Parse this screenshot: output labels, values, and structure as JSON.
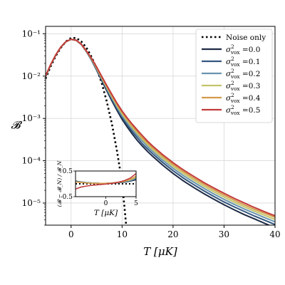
{
  "chart_data": [
    {
      "type": "line",
      "xlabel": "T [μK]",
      "ylabel": "𝓑",
      "xlim": [
        -5,
        40
      ],
      "ylim": [
        3e-06,
        0.15
      ],
      "yscale": "log",
      "grid": true,
      "legend_position": "top-right",
      "x_ticks": [
        0,
        10,
        20,
        30,
        40
      ],
      "y_ticks": [
        {
          "value": 1e-05,
          "label": "10⁻⁵"
        },
        {
          "value": 0.0001,
          "label": "10⁻⁴"
        },
        {
          "value": 0.001,
          "label": "10⁻³"
        },
        {
          "value": 0.01,
          "label": "10⁻²"
        },
        {
          "value": 0.1,
          "label": "10⁻¹"
        }
      ],
      "x": [
        -5,
        -4,
        -3,
        -2,
        -1,
        0,
        1,
        2,
        3,
        4,
        5,
        6,
        7,
        8,
        9,
        10,
        11,
        12,
        13,
        14,
        15,
        16,
        18,
        20,
        22,
        24,
        26,
        28,
        30,
        32,
        34,
        36,
        38,
        40
      ],
      "series": [
        {
          "name": "Noise only",
          "color": "#000000",
          "dashed": true,
          "x": [
            -5,
            -4,
            -3,
            -2,
            -1,
            0,
            1,
            2,
            3,
            4,
            5,
            6,
            7,
            8,
            9,
            10,
            10.8
          ],
          "values": [
            0.0087,
            0.0171,
            0.03,
            0.047,
            0.066,
            0.0798,
            0.0798,
            0.066,
            0.047,
            0.0288,
            0.0152,
            0.0069,
            0.0025,
            0.00075,
            0.00017,
            3.1e-05,
            3e-06
          ]
        },
        {
          "name": "σ²_vox = 0.0",
          "color": "#1e2b45",
          "values": [
            0.0097,
            0.0184,
            0.0315,
            0.0485,
            0.065,
            0.074,
            0.07,
            0.056,
            0.038,
            0.024,
            0.014,
            0.0079,
            0.0045,
            0.0026,
            0.00155,
            0.00095,
            0.00063,
            0.00043,
            0.0003,
            0.00022,
            0.000165,
            0.000127,
            7.8e-05,
            5e-05,
            3.35e-05,
            2.35e-05,
            1.68e-05,
            1.23e-05,
            9.1e-06,
            6.9e-06,
            5.3e-06,
            4.2e-06,
            3.3e-06,
            2.6e-06
          ]
        },
        {
          "name": "σ²_vox = 0.1",
          "color": "#34577f",
          "values": [
            0.0098,
            0.0185,
            0.0316,
            0.0486,
            0.0651,
            0.074,
            0.0701,
            0.0562,
            0.0383,
            0.0245,
            0.0145,
            0.0083,
            0.0048,
            0.00282,
            0.0017,
            0.00106,
            0.00071,
            0.00049,
            0.00035,
            0.00025,
            0.00019,
            0.000146,
            9e-05,
            5.8e-05,
            3.9e-05,
            2.74e-05,
            1.96e-05,
            1.43e-05,
            1.06e-05,
            8.1e-06,
            6.3e-06,
            4.9e-06,
            3.9e-06,
            3.1e-06
          ]
        },
        {
          "name": "σ²_vox = 0.2",
          "color": "#6a95b0",
          "values": [
            0.0099,
            0.0186,
            0.0317,
            0.0487,
            0.0652,
            0.0741,
            0.0702,
            0.0564,
            0.0386,
            0.025,
            0.015,
            0.0087,
            0.0051,
            0.00304,
            0.00185,
            0.00117,
            0.00079,
            0.00055,
            0.0004,
            0.00029,
            0.000215,
            0.000165,
            0.000102,
            6.6e-05,
            4.45e-05,
            3.13e-05,
            2.24e-05,
            1.64e-05,
            1.22e-05,
            9.3e-06,
            7.2e-06,
            5.7e-06,
            4.5e-06,
            3.6e-06
          ]
        },
        {
          "name": "σ²_vox = 0.3",
          "color": "#c3c46a",
          "values": [
            0.01,
            0.0187,
            0.0318,
            0.0488,
            0.0653,
            0.0741,
            0.0703,
            0.0566,
            0.0389,
            0.0255,
            0.0155,
            0.0091,
            0.0054,
            0.00326,
            0.002,
            0.00128,
            0.00087,
            0.00061,
            0.00044,
            0.00032,
            0.00024,
            0.000184,
            0.000114,
            7.4e-05,
            5e-05,
            3.52e-05,
            2.52e-05,
            1.85e-05,
            1.38e-05,
            1.05e-05,
            8.1e-06,
            6.4e-06,
            5.1e-06,
            4.1e-06
          ]
        },
        {
          "name": "σ²_vox = 0.4",
          "color": "#d49a4c",
          "values": [
            0.0101,
            0.0188,
            0.0319,
            0.0489,
            0.0654,
            0.0742,
            0.0704,
            0.0568,
            0.0392,
            0.026,
            0.016,
            0.0095,
            0.0057,
            0.00348,
            0.00215,
            0.00139,
            0.00095,
            0.00067,
            0.00048,
            0.00035,
            0.000265,
            0.000203,
            0.000126,
            8.2e-05,
            5.55e-05,
            3.91e-05,
            2.8e-05,
            2.06e-05,
            1.54e-05,
            1.17e-05,
            9e-06,
            7.1e-06,
            5.7e-06,
            4.6e-06
          ]
        },
        {
          "name": "σ²_vox = 0.5",
          "color": "#c23b3b",
          "values": [
            0.0102,
            0.0189,
            0.032,
            0.049,
            0.0655,
            0.0742,
            0.0705,
            0.057,
            0.0395,
            0.0265,
            0.0165,
            0.0099,
            0.006,
            0.0037,
            0.0023,
            0.0015,
            0.00103,
            0.00073,
            0.00053,
            0.00039,
            0.00029,
            0.000222,
            0.000138,
            9e-05,
            6.1e-05,
            4.3e-05,
            3.08e-05,
            2.27e-05,
            1.7e-05,
            1.29e-05,
            1e-05,
            7.8e-06,
            6.2e-06,
            5e-06
          ]
        }
      ]
    },
    {
      "type": "line",
      "role": "inset",
      "xlabel": "T [μK]",
      "ylabel": "(𝓑 − 𝓑_N) / 𝓑_N",
      "xlim": [
        -5,
        5
      ],
      "ylim": [
        -0.5,
        0.5
      ],
      "x_ticks": [
        0,
        5
      ],
      "y_ticks": [
        {
          "value": 0.5,
          "label": "0.5"
        },
        {
          "value": -0.5,
          "label": "-0.5"
        }
      ],
      "x": [
        -5,
        -4,
        -3,
        -2,
        -1,
        0,
        1,
        2,
        3,
        4,
        5
      ],
      "series": [
        {
          "name": "Noise only",
          "color": "#000000",
          "dashed": true,
          "values": [
            0,
            0,
            0,
            0,
            0,
            0,
            0,
            0,
            0,
            0,
            0
          ]
        },
        {
          "name": "σ²_vox = 0.0",
          "color": "#1e2b45",
          "values": [
            0.11,
            0.07,
            0.045,
            0.03,
            0.02,
            0.02,
            0.025,
            0.04,
            0.06,
            0.1,
            0.16
          ]
        },
        {
          "name": "σ²_vox = 0.1",
          "color": "#34577f",
          "values": [
            0.1,
            0.065,
            0.04,
            0.03,
            0.02,
            0.02,
            0.03,
            0.045,
            0.07,
            0.11,
            0.19
          ]
        },
        {
          "name": "σ²_vox = 0.2",
          "color": "#6a95b0",
          "values": [
            0.09,
            0.06,
            0.04,
            0.03,
            0.02,
            0.02,
            0.03,
            0.05,
            0.08,
            0.13,
            0.22
          ]
        },
        {
          "name": "σ²_vox = 0.3",
          "color": "#c3c46a",
          "values": [
            0.08,
            0.055,
            0.035,
            0.025,
            0.02,
            0.02,
            0.03,
            0.055,
            0.09,
            0.15,
            0.26
          ]
        },
        {
          "name": "σ²_vox = 0.4",
          "color": "#d49a4c",
          "values": [
            0.07,
            0.05,
            0.03,
            0.02,
            0.02,
            0.02,
            0.035,
            0.06,
            0.1,
            0.17,
            0.3
          ]
        },
        {
          "name": "σ²_vox = 0.5",
          "color": "#c23b3b",
          "values": [
            -0.2,
            -0.12,
            -0.08,
            -0.05,
            -0.03,
            -0.01,
            0.02,
            0.06,
            0.12,
            0.22,
            0.4
          ]
        }
      ]
    }
  ]
}
